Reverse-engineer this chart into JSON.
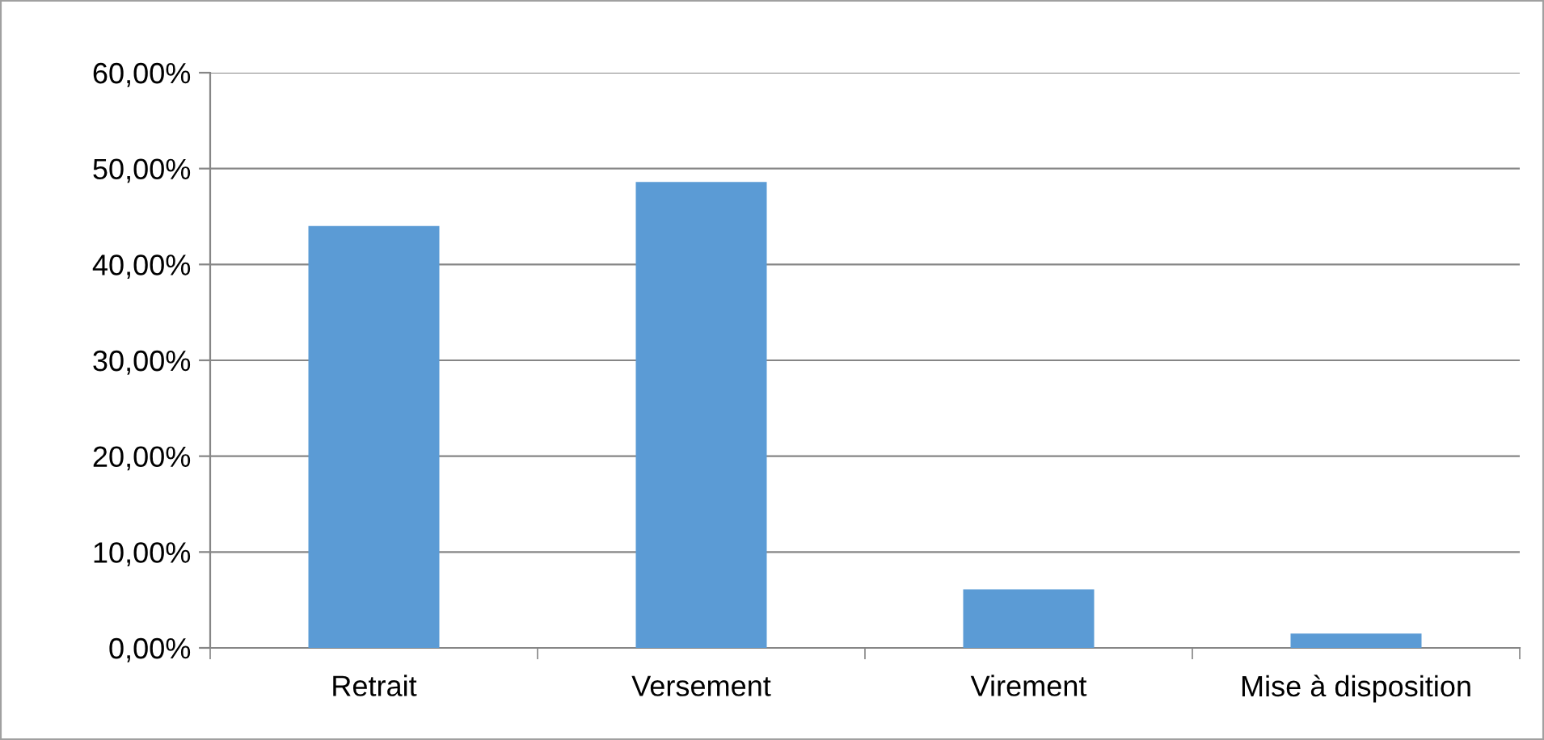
{
  "chart_data": {
    "type": "bar",
    "categories": [
      "Retrait",
      "Versement",
      "Virement",
      "Mise à disposition"
    ],
    "values": [
      44.0,
      48.6,
      6.1,
      1.5
    ],
    "color": "#5b9bd5",
    "ylim": [
      0,
      60
    ],
    "yticks": [
      {
        "value": 0,
        "label": "0,00%"
      },
      {
        "value": 10,
        "label": "10,00%"
      },
      {
        "value": 20,
        "label": "20,00%"
      },
      {
        "value": 30,
        "label": "30,00%"
      },
      {
        "value": 40,
        "label": "40,00%"
      },
      {
        "value": 50,
        "label": "50,00%"
      },
      {
        "value": 60,
        "label": "60,00%"
      }
    ],
    "grid": "y",
    "legend": false
  }
}
